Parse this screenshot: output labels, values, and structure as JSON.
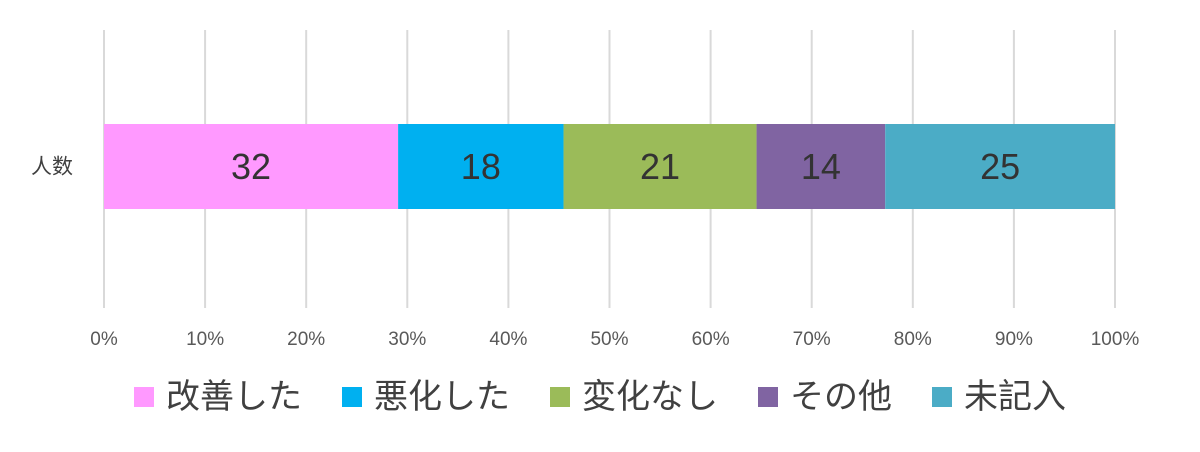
{
  "chart_data": {
    "type": "bar",
    "orientation": "horizontal",
    "stacking": "percent",
    "title": "",
    "xlabel": "",
    "ylabel": "",
    "categories": [
      "人数"
    ],
    "series": [
      {
        "name": "改善した",
        "values": [
          32
        ],
        "color": "#ff99ff"
      },
      {
        "name": "悪化した",
        "values": [
          18
        ],
        "color": "#00b0f0"
      },
      {
        "name": "変化なし",
        "values": [
          21
        ],
        "color": "#9bbb59"
      },
      {
        "name": "その他",
        "values": [
          14
        ],
        "color": "#8064a2"
      },
      {
        "name": "未記入",
        "values": [
          25
        ],
        "color": "#4bacc6"
      }
    ],
    "x_ticks": [
      "0%",
      "10%",
      "20%",
      "30%",
      "40%",
      "50%",
      "60%",
      "70%",
      "80%",
      "90%",
      "100%"
    ],
    "xlim": [
      0,
      100
    ],
    "grid": true,
    "legend_position": "bottom",
    "data_labels": true
  }
}
